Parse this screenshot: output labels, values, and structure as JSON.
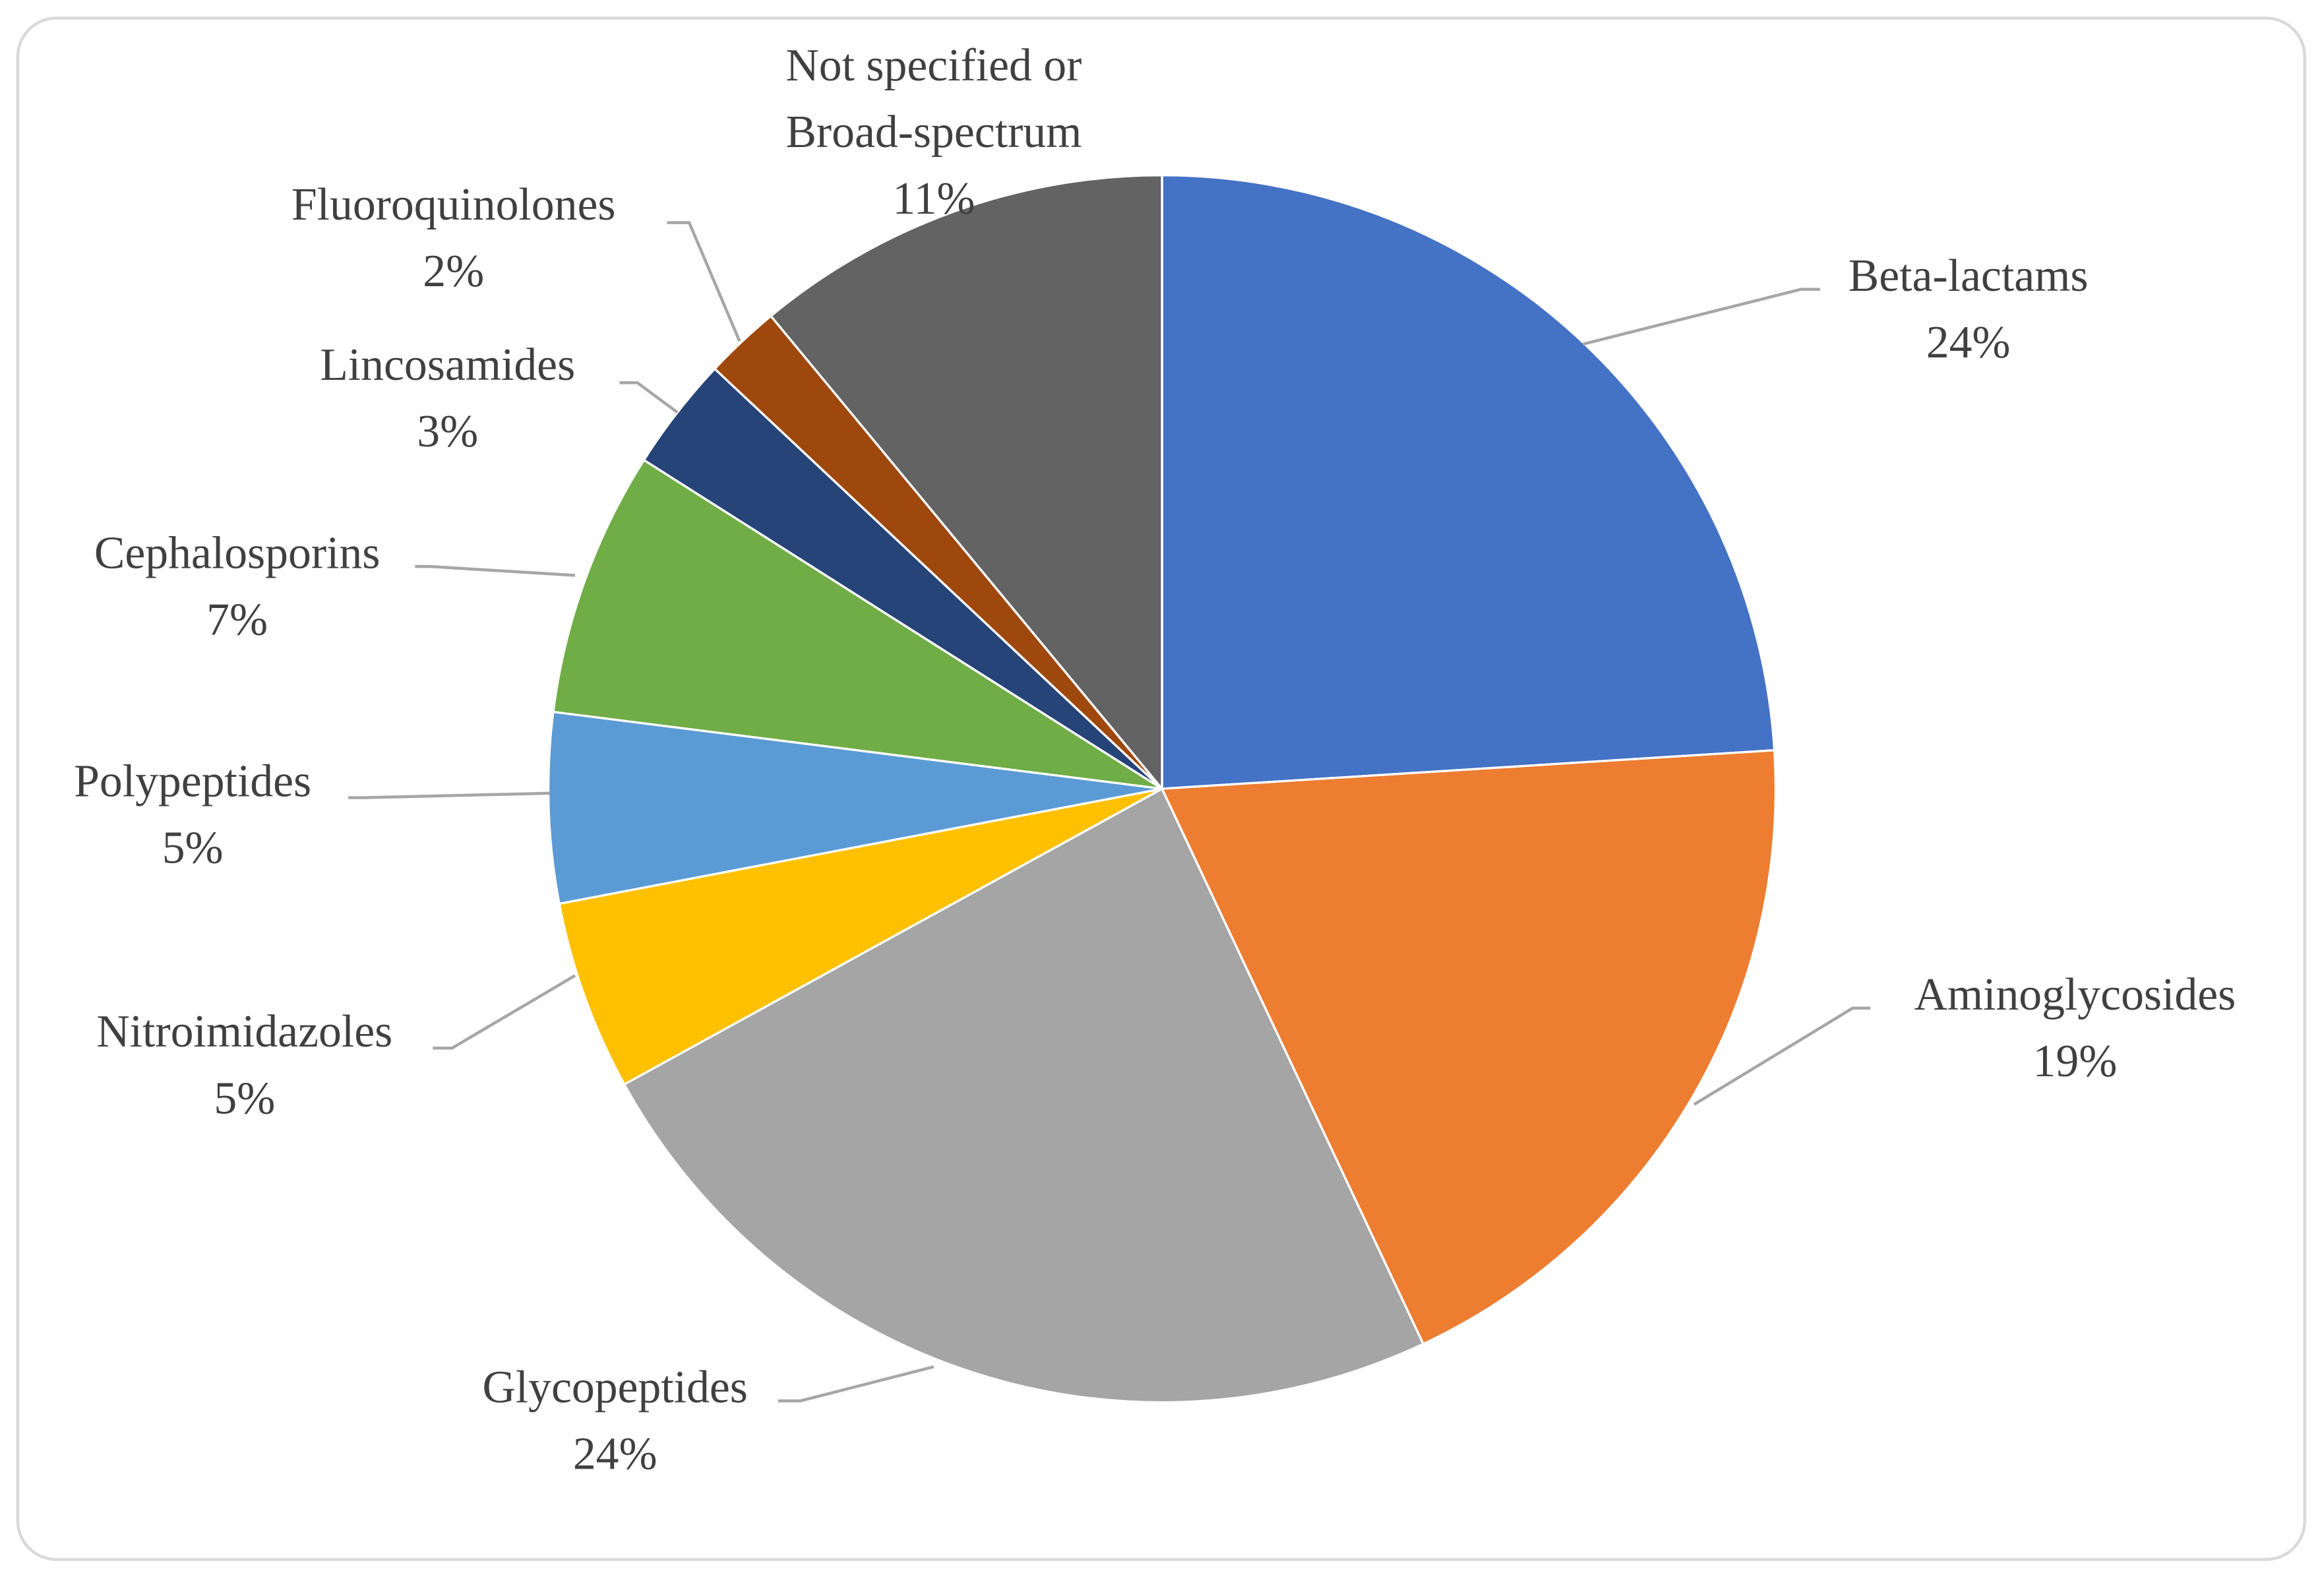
{
  "chart_data": {
    "type": "pie",
    "categories": [
      "Beta-lactams",
      "Aminoglycosides",
      "Glycopeptides",
      "Nitroimidazoles",
      "Polypeptides",
      "Cephalosporins",
      "Lincosamides",
      "Fluoroquinolones",
      "Not specified or Broad-spectrum"
    ],
    "values": [
      24,
      19,
      24,
      5,
      5,
      7,
      3,
      2,
      11
    ],
    "value_labels": [
      "24%",
      "19%",
      "24%",
      "5%",
      "5%",
      "7%",
      "3%",
      "2%",
      "11%"
    ],
    "colors": [
      "#4472c4",
      "#ed7d31",
      "#a5a5a5",
      "#ffc000",
      "#5b9bd5",
      "#70ad47",
      "#264478",
      "#9e480e",
      "#636363"
    ]
  }
}
